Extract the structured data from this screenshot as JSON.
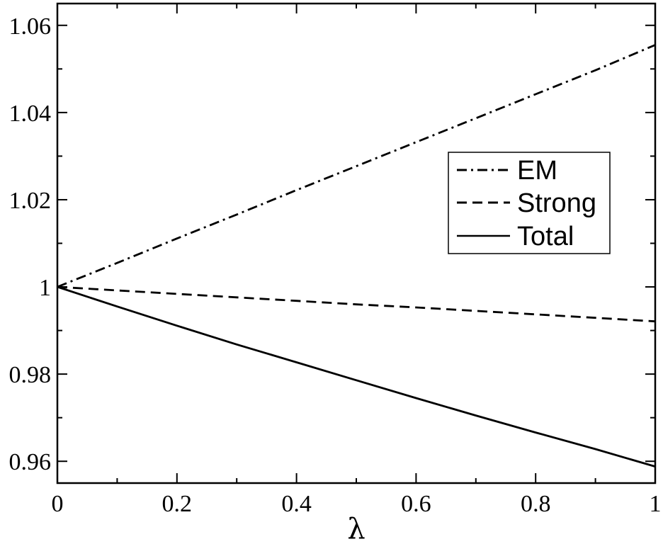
{
  "chart_data": {
    "type": "line",
    "title": "",
    "xlabel": "λ",
    "ylabel": "",
    "xlim": [
      0,
      1
    ],
    "ylim": [
      0.955,
      1.065
    ],
    "x_ticks": [
      {
        "value": 0,
        "label": "0"
      },
      {
        "value": 0.2,
        "label": "0.2"
      },
      {
        "value": 0.4,
        "label": "0.4"
      },
      {
        "value": 0.6,
        "label": "0.6"
      },
      {
        "value": 0.8,
        "label": "0.8"
      },
      {
        "value": 1,
        "label": "1"
      }
    ],
    "y_ticks": [
      {
        "value": 0.96,
        "label": "0.96"
      },
      {
        "value": 0.98,
        "label": "0.98"
      },
      {
        "value": 1.0,
        "label": "1"
      },
      {
        "value": 1.02,
        "label": "1.02"
      },
      {
        "value": 1.04,
        "label": "1.04"
      },
      {
        "value": 1.06,
        "label": "1.06"
      }
    ],
    "grid": false,
    "legend_position": "right",
    "series": [
      {
        "name": "EM",
        "style": "dash-dot",
        "x": [
          0,
          0.1,
          0.2,
          0.3,
          0.4,
          0.5,
          0.6,
          0.7,
          0.8,
          0.9,
          1.0
        ],
        "y": [
          1.0,
          1.0055,
          1.0111,
          1.0166,
          1.0222,
          1.0277,
          1.0332,
          1.0387,
          1.0442,
          1.0497,
          1.0555
        ]
      },
      {
        "name": "Strong",
        "style": "dashed",
        "x": [
          0,
          0.1,
          0.2,
          0.3,
          0.4,
          0.5,
          0.6,
          0.7,
          0.8,
          0.9,
          1.0
        ],
        "y": [
          1.0,
          0.9992,
          0.9984,
          0.9976,
          0.9968,
          0.996,
          0.9953,
          0.9945,
          0.9937,
          0.9929,
          0.9921
        ]
      },
      {
        "name": "Total",
        "style": "solid",
        "x": [
          0,
          0.1,
          0.2,
          0.3,
          0.4,
          0.5,
          0.6,
          0.7,
          0.8,
          0.9,
          1.0
        ],
        "y": [
          1.0,
          0.9955,
          0.9911,
          0.9868,
          0.9827,
          0.9786,
          0.9745,
          0.9705,
          0.9666,
          0.9628,
          0.9588
        ]
      }
    ]
  }
}
